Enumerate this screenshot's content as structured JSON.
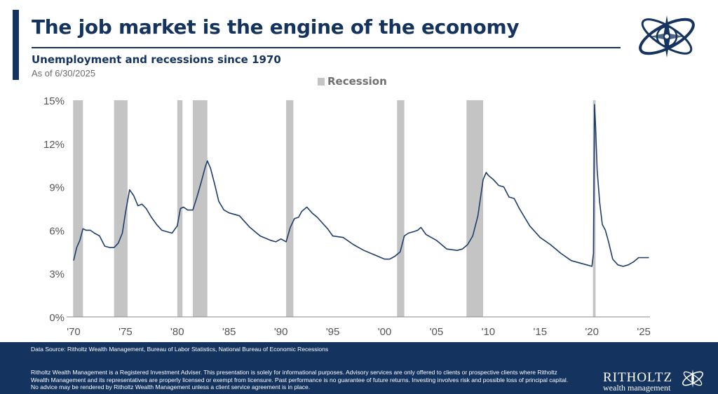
{
  "header": {
    "title": "The job market is the engine of the economy",
    "subtitle": "Unemployment and recessions since 1970",
    "as_of": "As of 6/30/2025"
  },
  "footer": {
    "source": "Data Source: Ritholtz Wealth Management, Bureau of Labor Statistics, National Bureau of Economic Recessions",
    "disclaimer": "Ritholtz Wealth Management is a Registered Investment Adviser. This presentation is solely for informational purposes. Advisory services are only offered to clients or prospective clients where Ritholtz Wealth Management and its representatives are properly licensed or exempt from licensure. Past performance is no guarantee of future returns. Investing involves risk and possible loss of principal capital. No advice may be rendered by Ritholtz Wealth Management unless a client service agreement is in place.",
    "brand_name": "RITHOLTZ",
    "brand_sub": "wealth management"
  },
  "colors": {
    "navy": "#14335f",
    "line": "#1f3d6b",
    "recession": "#c4c4c4",
    "axis_text": "#555555"
  },
  "chart_data": {
    "type": "line",
    "title": "Unemployment and recessions since 1970",
    "legend": {
      "label": "Recession",
      "placement": "top-center"
    },
    "xlim": [
      1970,
      2025.6
    ],
    "ylim": [
      0,
      15
    ],
    "x_ticks": [
      {
        "x": 1970,
        "label": "'70"
      },
      {
        "x": 1975,
        "label": "'75"
      },
      {
        "x": 1980,
        "label": "'80"
      },
      {
        "x": 1985,
        "label": "'85"
      },
      {
        "x": 1990,
        "label": "'90"
      },
      {
        "x": 1995,
        "label": "'95"
      },
      {
        "x": 2000,
        "label": "'00"
      },
      {
        "x": 2005,
        "label": "'05"
      },
      {
        "x": 2010,
        "label": "'10"
      },
      {
        "x": 2015,
        "label": "'15"
      },
      {
        "x": 2020,
        "label": "'20"
      },
      {
        "x": 2025,
        "label": "'25"
      }
    ],
    "y_ticks": [
      {
        "y": 0,
        "label": "0%"
      },
      {
        "y": 3,
        "label": "3%"
      },
      {
        "y": 6,
        "label": "6%"
      },
      {
        "y": 9,
        "label": "9%"
      },
      {
        "y": 12,
        "label": "12%"
      },
      {
        "y": 15,
        "label": "15%"
      }
    ],
    "recessions": [
      [
        1969.95,
        1970.9
      ],
      [
        1973.9,
        1975.2
      ],
      [
        1980.0,
        1980.5
      ],
      [
        1981.5,
        1982.9
      ],
      [
        1990.5,
        1991.2
      ],
      [
        2001.2,
        2001.9
      ],
      [
        2007.9,
        2009.5
      ],
      [
        2020.1,
        2020.35
      ]
    ],
    "series": [
      {
        "name": "Unemployment rate",
        "x": [
          1970.0,
          1970.3,
          1970.6,
          1970.9,
          1971.2,
          1971.6,
          1972.0,
          1972.5,
          1973.0,
          1973.5,
          1973.9,
          1974.3,
          1974.7,
          1975.0,
          1975.4,
          1975.8,
          1976.2,
          1976.6,
          1977.0,
          1977.5,
          1978.0,
          1978.5,
          1979.0,
          1979.5,
          1980.0,
          1980.3,
          1980.6,
          1981.0,
          1981.5,
          1981.9,
          1982.3,
          1982.7,
          1982.9,
          1983.2,
          1983.6,
          1984.0,
          1984.5,
          1985.0,
          1986.0,
          1987.0,
          1988.0,
          1989.0,
          1989.5,
          1990.0,
          1990.5,
          1990.9,
          1991.3,
          1991.7,
          1992.0,
          1992.5,
          1993.0,
          1993.5,
          1994.0,
          1994.5,
          1995.0,
          1996.0,
          1997.0,
          1998.0,
          1999.0,
          2000.0,
          2000.5,
          2001.0,
          2001.5,
          2001.9,
          2002.3,
          2002.8,
          2003.2,
          2003.5,
          2004.0,
          2004.5,
          2005.0,
          2006.0,
          2007.0,
          2007.5,
          2008.0,
          2008.5,
          2009.0,
          2009.5,
          2009.8,
          2010.0,
          2010.5,
          2011.0,
          2011.5,
          2012.0,
          2012.5,
          2013.0,
          2014.0,
          2015.0,
          2016.0,
          2017.0,
          2018.0,
          2019.0,
          2019.5,
          2020.0,
          2020.15,
          2020.25,
          2020.35,
          2020.5,
          2020.75,
          2021.0,
          2021.3,
          2021.6,
          2022.0,
          2022.5,
          2023.0,
          2023.5,
          2024.0,
          2024.5,
          2025.0,
          2025.5
        ],
        "values": [
          3.9,
          4.8,
          5.3,
          6.1,
          6.0,
          6.0,
          5.8,
          5.6,
          4.9,
          4.8,
          4.8,
          5.1,
          5.8,
          7.2,
          8.8,
          8.4,
          7.7,
          7.8,
          7.5,
          6.9,
          6.4,
          6.0,
          5.9,
          5.8,
          6.3,
          7.5,
          7.6,
          7.4,
          7.4,
          8.3,
          9.3,
          10.4,
          10.8,
          10.3,
          9.2,
          8.0,
          7.4,
          7.2,
          7.0,
          6.2,
          5.6,
          5.3,
          5.2,
          5.4,
          5.2,
          6.2,
          6.8,
          6.9,
          7.3,
          7.6,
          7.2,
          6.9,
          6.5,
          6.1,
          5.6,
          5.5,
          5.0,
          4.6,
          4.3,
          4.0,
          4.0,
          4.2,
          4.5,
          5.6,
          5.8,
          5.9,
          6.0,
          6.2,
          5.7,
          5.5,
          5.3,
          4.7,
          4.6,
          4.7,
          5.0,
          5.6,
          7.0,
          9.5,
          10.0,
          9.8,
          9.5,
          9.1,
          9.0,
          8.3,
          8.2,
          7.5,
          6.3,
          5.5,
          5.0,
          4.4,
          3.9,
          3.7,
          3.6,
          3.5,
          4.4,
          14.7,
          13.2,
          10.2,
          7.9,
          6.4,
          6.0,
          5.2,
          4.0,
          3.6,
          3.5,
          3.6,
          3.8,
          4.1,
          4.1,
          4.1
        ]
      }
    ]
  }
}
